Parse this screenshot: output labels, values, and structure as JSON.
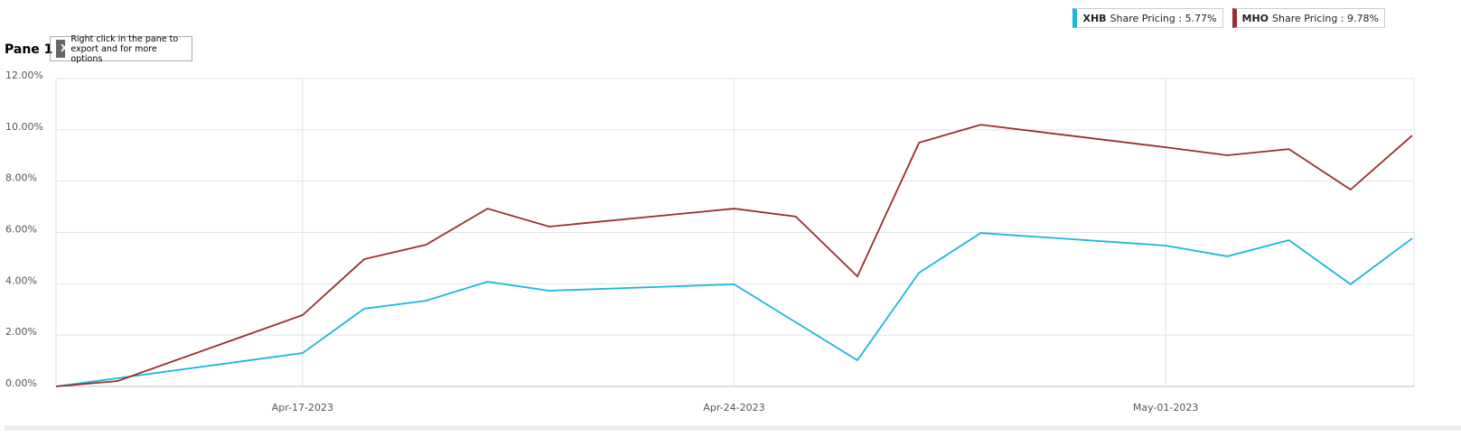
{
  "pane_label": "Pane 1",
  "export_hint": "Right click in the pane to export and for more options",
  "chart_data": {
    "type": "line",
    "x": [
      "2023-04-13",
      "2023-04-14",
      "2023-04-17",
      "2023-04-18",
      "2023-04-19",
      "2023-04-20",
      "2023-04-21",
      "2023-04-24",
      "2023-04-25",
      "2023-04-26",
      "2023-04-27",
      "2023-04-28",
      "2023-05-01",
      "2023-05-02",
      "2023-05-03",
      "2023-05-04",
      "2023-05-05"
    ],
    "series": [
      {
        "name": "XHB",
        "legend_text": "Share Pricing : 5.77%",
        "color": "#1ab7dc",
        "values": [
          0,
          0.32,
          1.3,
          3.03,
          3.34,
          4.08,
          3.73,
          3.98,
          2.5,
          1.02,
          4.43,
          5.98,
          5.49,
          5.07,
          5.7,
          3.98,
          5.77
        ]
      },
      {
        "name": "MHO",
        "legend_text": "Share Pricing : 9.78%",
        "color": "#9b2d2a",
        "values": [
          0,
          0.21,
          2.78,
          4.96,
          5.52,
          6.93,
          6.23,
          6.93,
          6.62,
          4.29,
          9.5,
          10.2,
          9.32,
          9.01,
          9.25,
          7.67,
          9.78
        ]
      }
    ],
    "xlim": [
      "2023-04-13",
      "2023-05-05"
    ],
    "xticks": [
      {
        "value": "2023-04-17",
        "label": "Apr-17-2023"
      },
      {
        "value": "2023-04-24",
        "label": "Apr-24-2023"
      },
      {
        "value": "2023-05-01",
        "label": "May-01-2023"
      }
    ],
    "ylim": [
      0,
      12
    ],
    "yticks": [
      {
        "value": 0,
        "label": "0.00%"
      },
      {
        "value": 2,
        "label": "2.00%"
      },
      {
        "value": 4,
        "label": "4.00%"
      },
      {
        "value": 6,
        "label": "6.00%"
      },
      {
        "value": 8,
        "label": "8.00%"
      },
      {
        "value": 10,
        "label": "10.00%"
      },
      {
        "value": 12,
        "label": "12.00%"
      }
    ],
    "grid": true
  }
}
